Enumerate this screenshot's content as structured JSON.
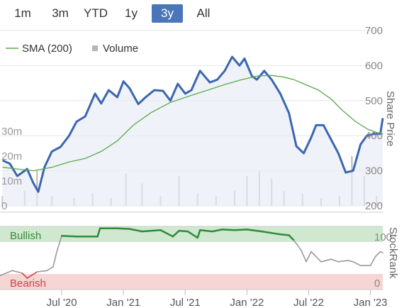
{
  "range_buttons": [
    {
      "label": "1m",
      "active": false
    },
    {
      "label": "3m",
      "active": false
    },
    {
      "label": "YTD",
      "active": false
    },
    {
      "label": "1y",
      "active": false
    },
    {
      "label": "3y",
      "active": true
    },
    {
      "label": "All",
      "active": false
    }
  ],
  "legend": {
    "sma_label": "SMA (200)",
    "volume_label": "Volume",
    "sma_color": "#5aab45",
    "volume_color": "#b5b5b5"
  },
  "colors": {
    "price_line": "#3b66b0",
    "price_fill": "#e8edf7",
    "bullish_band": "#cfe8cf",
    "bearish_band": "#f6d5d5",
    "stockrank_bull": "#2e8b3a",
    "stockrank_neutral": "#9a9a9a",
    "stockrank_bear": "#d04040",
    "bullish_text": "#3a8a3a",
    "bearish_text": "#c74545"
  },
  "chart_data": {
    "type": "line",
    "price_axis_title": "Share Price",
    "price_ticks": [
      "700",
      "600",
      "500",
      "400",
      "300",
      "200"
    ],
    "price_ylim": [
      200,
      700
    ],
    "volume_ticks": [
      "30m",
      "20m",
      "10m",
      "0"
    ],
    "volume_ylim": [
      0,
      30
    ],
    "x_ticks": [
      "Jul '20",
      "Jan '21",
      "Jul '21",
      "Jan '22",
      "Jul '22",
      "Jan '23"
    ],
    "price_series": {
      "name": "",
      "x": [
        2020.02,
        2020.08,
        2020.14,
        2020.22,
        2020.27,
        2020.31,
        2020.36,
        2020.42,
        2020.49,
        2020.56,
        2020.62,
        2020.69,
        2020.77,
        2020.82,
        2020.88,
        2020.95,
        2021.0,
        2021.05,
        2021.12,
        2021.18,
        2021.25,
        2021.32,
        2021.38,
        2021.44,
        2021.5,
        2021.55,
        2021.62,
        2021.7,
        2021.76,
        2021.82,
        2021.88,
        2021.94,
        2021.98,
        2022.04,
        2022.08,
        2022.14,
        2022.2,
        2022.27,
        2022.34,
        2022.4,
        2022.46,
        2022.52,
        2022.56,
        2022.62,
        2022.68,
        2022.74,
        2022.8,
        2022.86,
        2022.92,
        2022.97,
        2023.03,
        2023.08,
        2023.1
      ],
      "values": [
        330,
        320,
        285,
        305,
        265,
        240,
        310,
        355,
        368,
        400,
        440,
        455,
        520,
        492,
        530,
        510,
        555,
        535,
        490,
        510,
        530,
        528,
        500,
        548,
        520,
        530,
        585,
        552,
        560,
        585,
        625,
        600,
        620,
        570,
        560,
        585,
        560,
        520,
        465,
        370,
        350,
        395,
        430,
        430,
        390,
        350,
        295,
        300,
        375,
        400,
        405,
        405,
        450
      ]
    },
    "sma_series": {
      "name": "SMA (200)",
      "x": [
        2020.02,
        2020.14,
        2020.27,
        2020.42,
        2020.56,
        2020.69,
        2020.82,
        2020.95,
        2021.08,
        2021.22,
        2021.38,
        2021.55,
        2021.7,
        2021.82,
        2021.94,
        2022.08,
        2022.2,
        2022.3,
        2022.38,
        2022.48,
        2022.58,
        2022.68,
        2022.78,
        2022.88,
        2022.98,
        2023.06,
        2023.1
      ],
      "values": [
        310,
        305,
        300,
        310,
        325,
        335,
        355,
        385,
        430,
        465,
        495,
        515,
        532,
        546,
        558,
        570,
        572,
        567,
        560,
        545,
        530,
        505,
        470,
        440,
        418,
        408,
        406
      ]
    },
    "volume_series": {
      "name": "Volume",
      "x": [
        2020.02,
        2020.2,
        2020.3,
        2020.42,
        2020.6,
        2020.75,
        2020.9,
        2021.02,
        2021.15,
        2021.3,
        2021.45,
        2021.6,
        2021.75,
        2021.9,
        2022.0,
        2022.1,
        2022.2,
        2022.3,
        2022.45,
        2022.6,
        2022.75,
        2022.85,
        2022.95,
        2023.05
      ],
      "values": [
        4,
        6,
        14,
        4,
        3,
        5,
        3,
        13,
        9,
        4,
        12,
        5,
        4,
        6,
        12,
        14,
        11,
        6,
        5,
        3,
        4,
        20,
        12,
        4
      ]
    },
    "stockrank": {
      "title": "StockRank",
      "bullish_label": "Bullish",
      "bearish_label": "Bearish",
      "top_tick": "100",
      "bottom_tick": "0",
      "ylim": [
        0,
        100
      ],
      "x": [
        2020.0,
        2020.1,
        2020.18,
        2020.22,
        2020.3,
        2020.38,
        2020.43,
        2020.46,
        2020.5,
        2020.62,
        2020.74,
        2020.79,
        2020.81,
        2020.95,
        2021.05,
        2021.1,
        2021.15,
        2021.3,
        2021.4,
        2021.45,
        2021.52,
        2021.6,
        2021.62,
        2021.72,
        2021.8,
        2021.9,
        2022.0,
        2022.12,
        2022.25,
        2022.34,
        2022.38,
        2022.44,
        2022.48,
        2022.52,
        2022.6,
        2022.68,
        2022.74,
        2022.82,
        2022.86,
        2022.92,
        2023.0,
        2023.04,
        2023.08,
        2023.1
      ],
      "values": [
        22,
        30,
        26,
        18,
        28,
        30,
        36,
        60,
        85,
        84,
        84,
        84,
        97,
        97,
        96,
        94,
        92,
        94,
        84,
        93,
        92,
        82,
        94,
        92,
        95,
        94,
        95,
        92,
        88,
        86,
        78,
        62,
        44,
        60,
        44,
        48,
        44,
        46,
        44,
        38,
        38,
        52,
        60,
        58
      ]
    },
    "legend_position": "top-left",
    "grid": true
  }
}
